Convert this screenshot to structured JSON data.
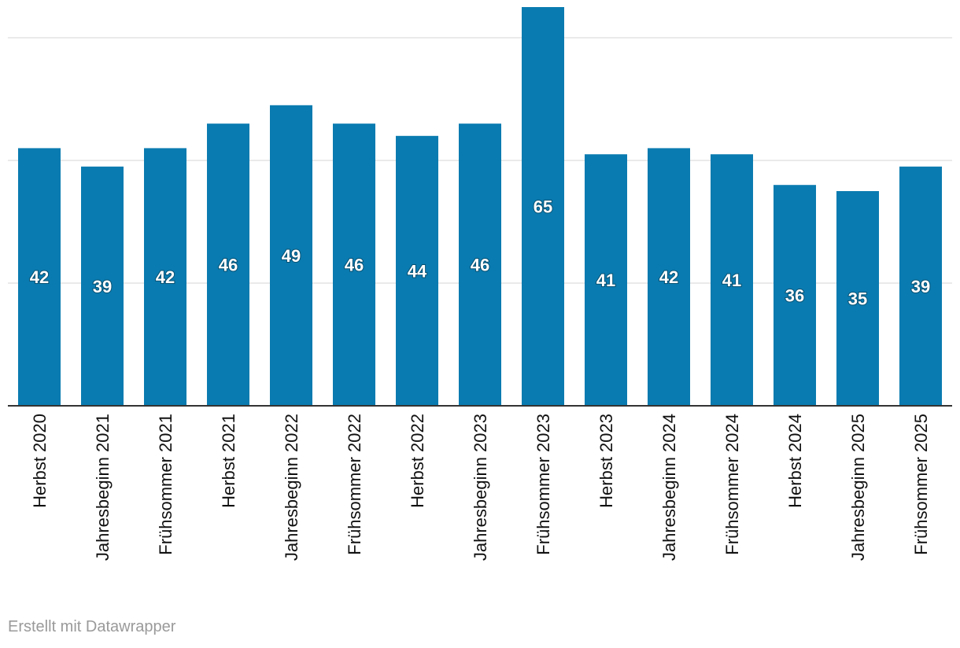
{
  "chart_data": {
    "type": "bar",
    "categories": [
      "Herbst 2020",
      "Jahresbeginn 2021",
      "Frühsommer 2021",
      "Herbst 2021",
      "Jahresbeginn 2022",
      "Frühsommer 2022",
      "Herbst 2022",
      "Jahresbeginn 2023",
      "Frühsommer 2023",
      "Herbst 2023",
      "Jahresbeginn 2024",
      "Frühsommer 2024",
      "Herbst 2024",
      "Jahresbeginn 2025",
      "Frühsommer 2025"
    ],
    "values": [
      42,
      39,
      42,
      46,
      49,
      46,
      44,
      46,
      65,
      41,
      42,
      41,
      36,
      35,
      39
    ],
    "title": "",
    "xlabel": "",
    "ylabel": "",
    "ylim": [
      0,
      60
    ],
    "gridlines": [
      20,
      40,
      60
    ],
    "grid": true,
    "bar_color": "#0a7bb0",
    "data_labels": true
  },
  "footer": {
    "credit": "Erstellt mit Datawrapper"
  }
}
